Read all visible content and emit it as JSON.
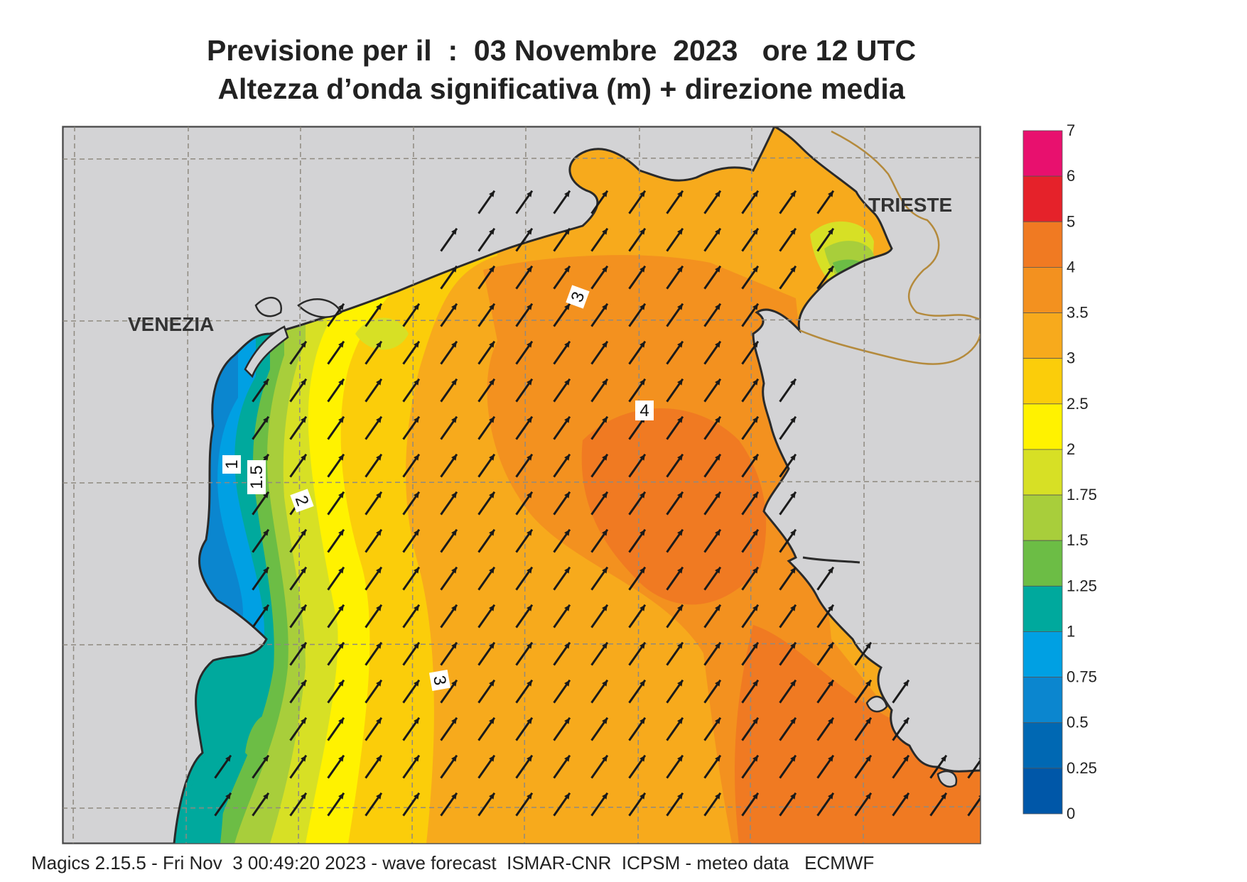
{
  "title": {
    "line1": "Previsione per il  :  03 Novembre  2023   ore 12 UTC",
    "line2": "Altezza d’onda significativa (m) + direzione media"
  },
  "map": {
    "places": [
      "VENEZIA",
      "TRIESTE"
    ],
    "contour_labels": [
      "1",
      "1.5",
      "2",
      "3",
      "3",
      "4"
    ],
    "arrow_direction": "toward north-east",
    "colors": {
      "land": "#d3d3d5",
      "coastline": "#2a2a2a",
      "border": "#b48a3c",
      "graticule": "#8f8a80"
    }
  },
  "colorbar": {
    "ticks": [
      "7",
      "6",
      "5",
      "4",
      "3.5",
      "3",
      "2.5",
      "2",
      "1.75",
      "1.5",
      "1.25",
      "1",
      "0.75",
      "0.5",
      "0.25",
      "0"
    ],
    "colors": [
      "#e8106e",
      "#e5222a",
      "#f07a22",
      "#f3911f",
      "#f7aa1c",
      "#fbcd0a",
      "#fff200",
      "#d7e025",
      "#a8ce3b",
      "#6cbd45",
      "#00a99d",
      "#00a0e3",
      "#0b86cf",
      "#0068b3",
      "#0057a8"
    ]
  },
  "footer": "Magics 2.15.5 - Fri Nov  3 00:49:20 2023 - wave forecast  ISMAR-CNR  ICPSM - meteo data   ECMWF"
}
